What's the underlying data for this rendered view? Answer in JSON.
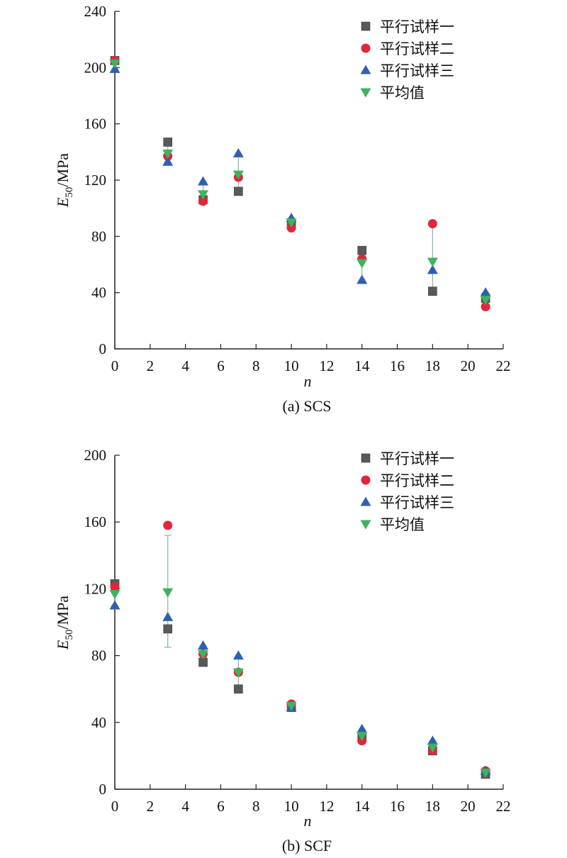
{
  "chart_data": [
    {
      "type": "scatter",
      "caption": "(a) SCS",
      "xlabel": "n",
      "ylabel_main": "E",
      "ylabel_sub": "50",
      "ylabel_unit": "/MPa",
      "xlim": [
        0,
        22
      ],
      "ylim": [
        0,
        240
      ],
      "xticks": [
        0,
        2,
        4,
        6,
        8,
        10,
        12,
        14,
        16,
        18,
        20,
        22
      ],
      "yticks": [
        0,
        40,
        80,
        120,
        160,
        200,
        240
      ],
      "x": [
        0,
        3,
        5,
        7,
        10,
        14,
        18,
        21
      ],
      "legend_position": "top-right",
      "series": [
        {
          "name": "平行试样一",
          "marker": "square",
          "color": "#595959",
          "values": [
            205,
            147,
            106,
            112,
            89,
            70,
            41,
            36
          ]
        },
        {
          "name": "平行试样二",
          "marker": "circle",
          "color": "#e0263c",
          "values": [
            205,
            137,
            105,
            122,
            86,
            64,
            89,
            30
          ]
        },
        {
          "name": "平行试样三",
          "marker": "triangle-up",
          "color": "#2f5fb3",
          "values": [
            199,
            133,
            119,
            139,
            93,
            49,
            56,
            40
          ]
        },
        {
          "name": "平均值",
          "marker": "triangle-down",
          "color": "#3cb35c",
          "values": [
            203,
            139,
            110,
            124,
            90,
            61,
            62,
            35
          ]
        }
      ],
      "error_bars": [
        {
          "x": 0,
          "low": 199,
          "high": 206
        },
        {
          "x": 3,
          "low": 131,
          "high": 147
        },
        {
          "x": 5,
          "low": 103,
          "high": 119
        },
        {
          "x": 7,
          "low": 111,
          "high": 139
        },
        {
          "x": 10,
          "low": 86,
          "high": 93
        },
        {
          "x": 14,
          "low": 49,
          "high": 71
        },
        {
          "x": 18,
          "low": 38,
          "high": 89
        },
        {
          "x": 21,
          "low": 30,
          "high": 40
        }
      ]
    },
    {
      "type": "scatter",
      "caption": "(b) SCF",
      "xlabel": "n",
      "ylabel_main": "E",
      "ylabel_sub": "50",
      "ylabel_unit": "/MPa",
      "xlim": [
        0,
        22
      ],
      "ylim": [
        0,
        200
      ],
      "xticks": [
        0,
        2,
        4,
        6,
        8,
        10,
        12,
        14,
        16,
        18,
        20,
        22
      ],
      "yticks": [
        0,
        40,
        80,
        120,
        160,
        200
      ],
      "x": [
        0,
        3,
        5,
        7,
        10,
        14,
        18,
        21
      ],
      "legend_position": "top-right",
      "series": [
        {
          "name": "平行试样一",
          "marker": "square",
          "color": "#595959",
          "values": [
            123,
            96,
            76,
            60,
            49,
            31,
            23,
            9
          ]
        },
        {
          "name": "平行试样二",
          "marker": "circle",
          "color": "#e0263c",
          "values": [
            121,
            158,
            81,
            70,
            51,
            29,
            23,
            11
          ]
        },
        {
          "name": "平行试样三",
          "marker": "triangle-up",
          "color": "#2f5fb3",
          "values": [
            110,
            103,
            86,
            80,
            49,
            36,
            29,
            11
          ]
        },
        {
          "name": "平均值",
          "marker": "triangle-down",
          "color": "#3cb35c",
          "values": [
            117,
            118,
            81,
            70,
            50,
            32,
            25,
            10
          ]
        }
      ],
      "error_bars": [
        {
          "x": 0,
          "low": 110,
          "high": 124
        },
        {
          "x": 3,
          "low": 85,
          "high": 152
        },
        {
          "x": 5,
          "low": 76,
          "high": 86
        },
        {
          "x": 7,
          "low": 60,
          "high": 80
        },
        {
          "x": 10,
          "low": 49,
          "high": 51
        },
        {
          "x": 14,
          "low": 29,
          "high": 36
        },
        {
          "x": 18,
          "low": 22,
          "high": 29
        },
        {
          "x": 21,
          "low": 9,
          "high": 11
        }
      ]
    }
  ]
}
